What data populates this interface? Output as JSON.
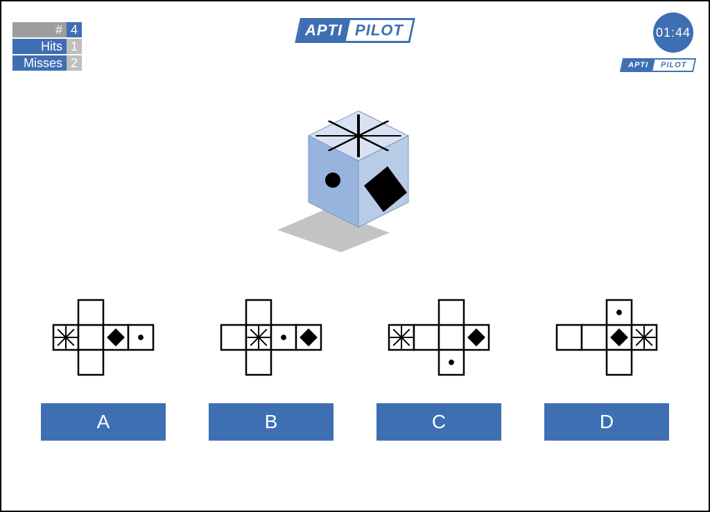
{
  "colors": {
    "brand_blue": "#3e6fb3",
    "brand_blue_dark": "#2f5a96",
    "grey_row": "#9d9d9d",
    "grey_cell": "#bfbfbf",
    "cube_top": "#d8e2f2",
    "cube_left": "#96b4dd",
    "cube_right": "#b9cce7",
    "cube_edge": "#7a94bb",
    "shadow": "#c3c3c3"
  },
  "score": {
    "rows": [
      {
        "label": "#",
        "value": "4",
        "label_bg": "grey_row",
        "value_bg": "brand_blue"
      },
      {
        "label": "Hits",
        "value": "1",
        "label_bg": "brand_blue",
        "value_bg": "grey_cell"
      },
      {
        "label": "Misses",
        "value": "2",
        "label_bg": "brand_blue",
        "value_bg": "grey_cell"
      }
    ]
  },
  "logo": {
    "part1": "APTI",
    "part2": "PILOT"
  },
  "timer": "01:44",
  "answers": [
    {
      "key": "A",
      "label": "A"
    },
    {
      "key": "B",
      "label": "B"
    },
    {
      "key": "C",
      "label": "C"
    },
    {
      "key": "D",
      "label": "D"
    }
  ],
  "nets": {
    "cell": 36,
    "A": {
      "layout": "horizontal",
      "star": [
        0,
        1
      ],
      "diamond": [
        2,
        1
      ],
      "dot": [
        3,
        1
      ],
      "dot_small": true
    },
    "B": {
      "layout": "horizontal",
      "star": [
        1,
        1
      ],
      "diamond": [
        3,
        1
      ],
      "dot": [
        2,
        1
      ],
      "dot_small": true
    },
    "C": {
      "layout": "vertical",
      "star": [
        0,
        1
      ],
      "diamond": [
        3,
        1
      ],
      "dot": [
        2,
        2
      ],
      "dot_small": true
    },
    "D": {
      "layout": "vertical_up",
      "star": [
        3,
        1
      ],
      "diamond": [
        2,
        1
      ],
      "dot": [
        2,
        0
      ],
      "dot_small": true
    }
  }
}
